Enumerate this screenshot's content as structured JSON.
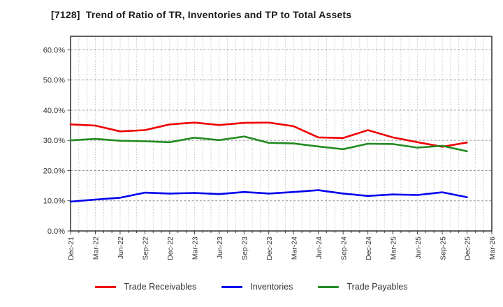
{
  "title": "[7128]  Trend of Ratio of TR, Inventories and TP to Total Assets",
  "chart_data": {
    "type": "line",
    "title": "[7128]  Trend of Ratio of TR, Inventories and TP to Total Assets",
    "categories": [
      "Dec-21",
      "Mar-22",
      "Jun-22",
      "Sep-22",
      "Dec-22",
      "Mar-23",
      "Jun-23",
      "Sep-23",
      "Dec-23",
      "Mar-24",
      "Jun-24",
      "Sep-24",
      "Dec-24",
      "Mar-25",
      "Jun-25",
      "Sep-25",
      "Dec-25",
      "Mar-26"
    ],
    "series": [
      {
        "name": "Trade Receivables",
        "color": "#ee0000",
        "values": [
          35.3,
          34.9,
          33.0,
          33.4,
          35.3,
          35.9,
          35.1,
          35.8,
          35.9,
          34.7,
          31.0,
          30.8,
          33.4,
          31.0,
          29.4,
          27.9,
          29.3
        ]
      },
      {
        "name": "Inventories",
        "color": "#0000ee",
        "values": [
          9.7,
          10.4,
          11.0,
          12.7,
          12.4,
          12.6,
          12.2,
          12.9,
          12.4,
          12.9,
          13.5,
          12.4,
          11.6,
          12.1,
          11.9,
          12.8,
          11.2
        ]
      },
      {
        "name": "Trade Payables",
        "color": "#228b22",
        "values": [
          30.0,
          30.5,
          29.9,
          29.7,
          29.4,
          30.9,
          30.1,
          31.3,
          29.2,
          29.0,
          28.0,
          27.1,
          28.9,
          28.8,
          27.6,
          28.2,
          26.4
        ]
      }
    ],
    "ylabel": "",
    "xlabel": "",
    "ylim": [
      0,
      64.5
    ],
    "ytick_step": 10,
    "ytick_labels": [
      "0.0%",
      "10.0%",
      "20.0%",
      "30.0%",
      "40.0%",
      "50.0%",
      "60.0%"
    ],
    "grid": "on",
    "minor_x_divisions": 3,
    "legend_position": "bottom"
  }
}
